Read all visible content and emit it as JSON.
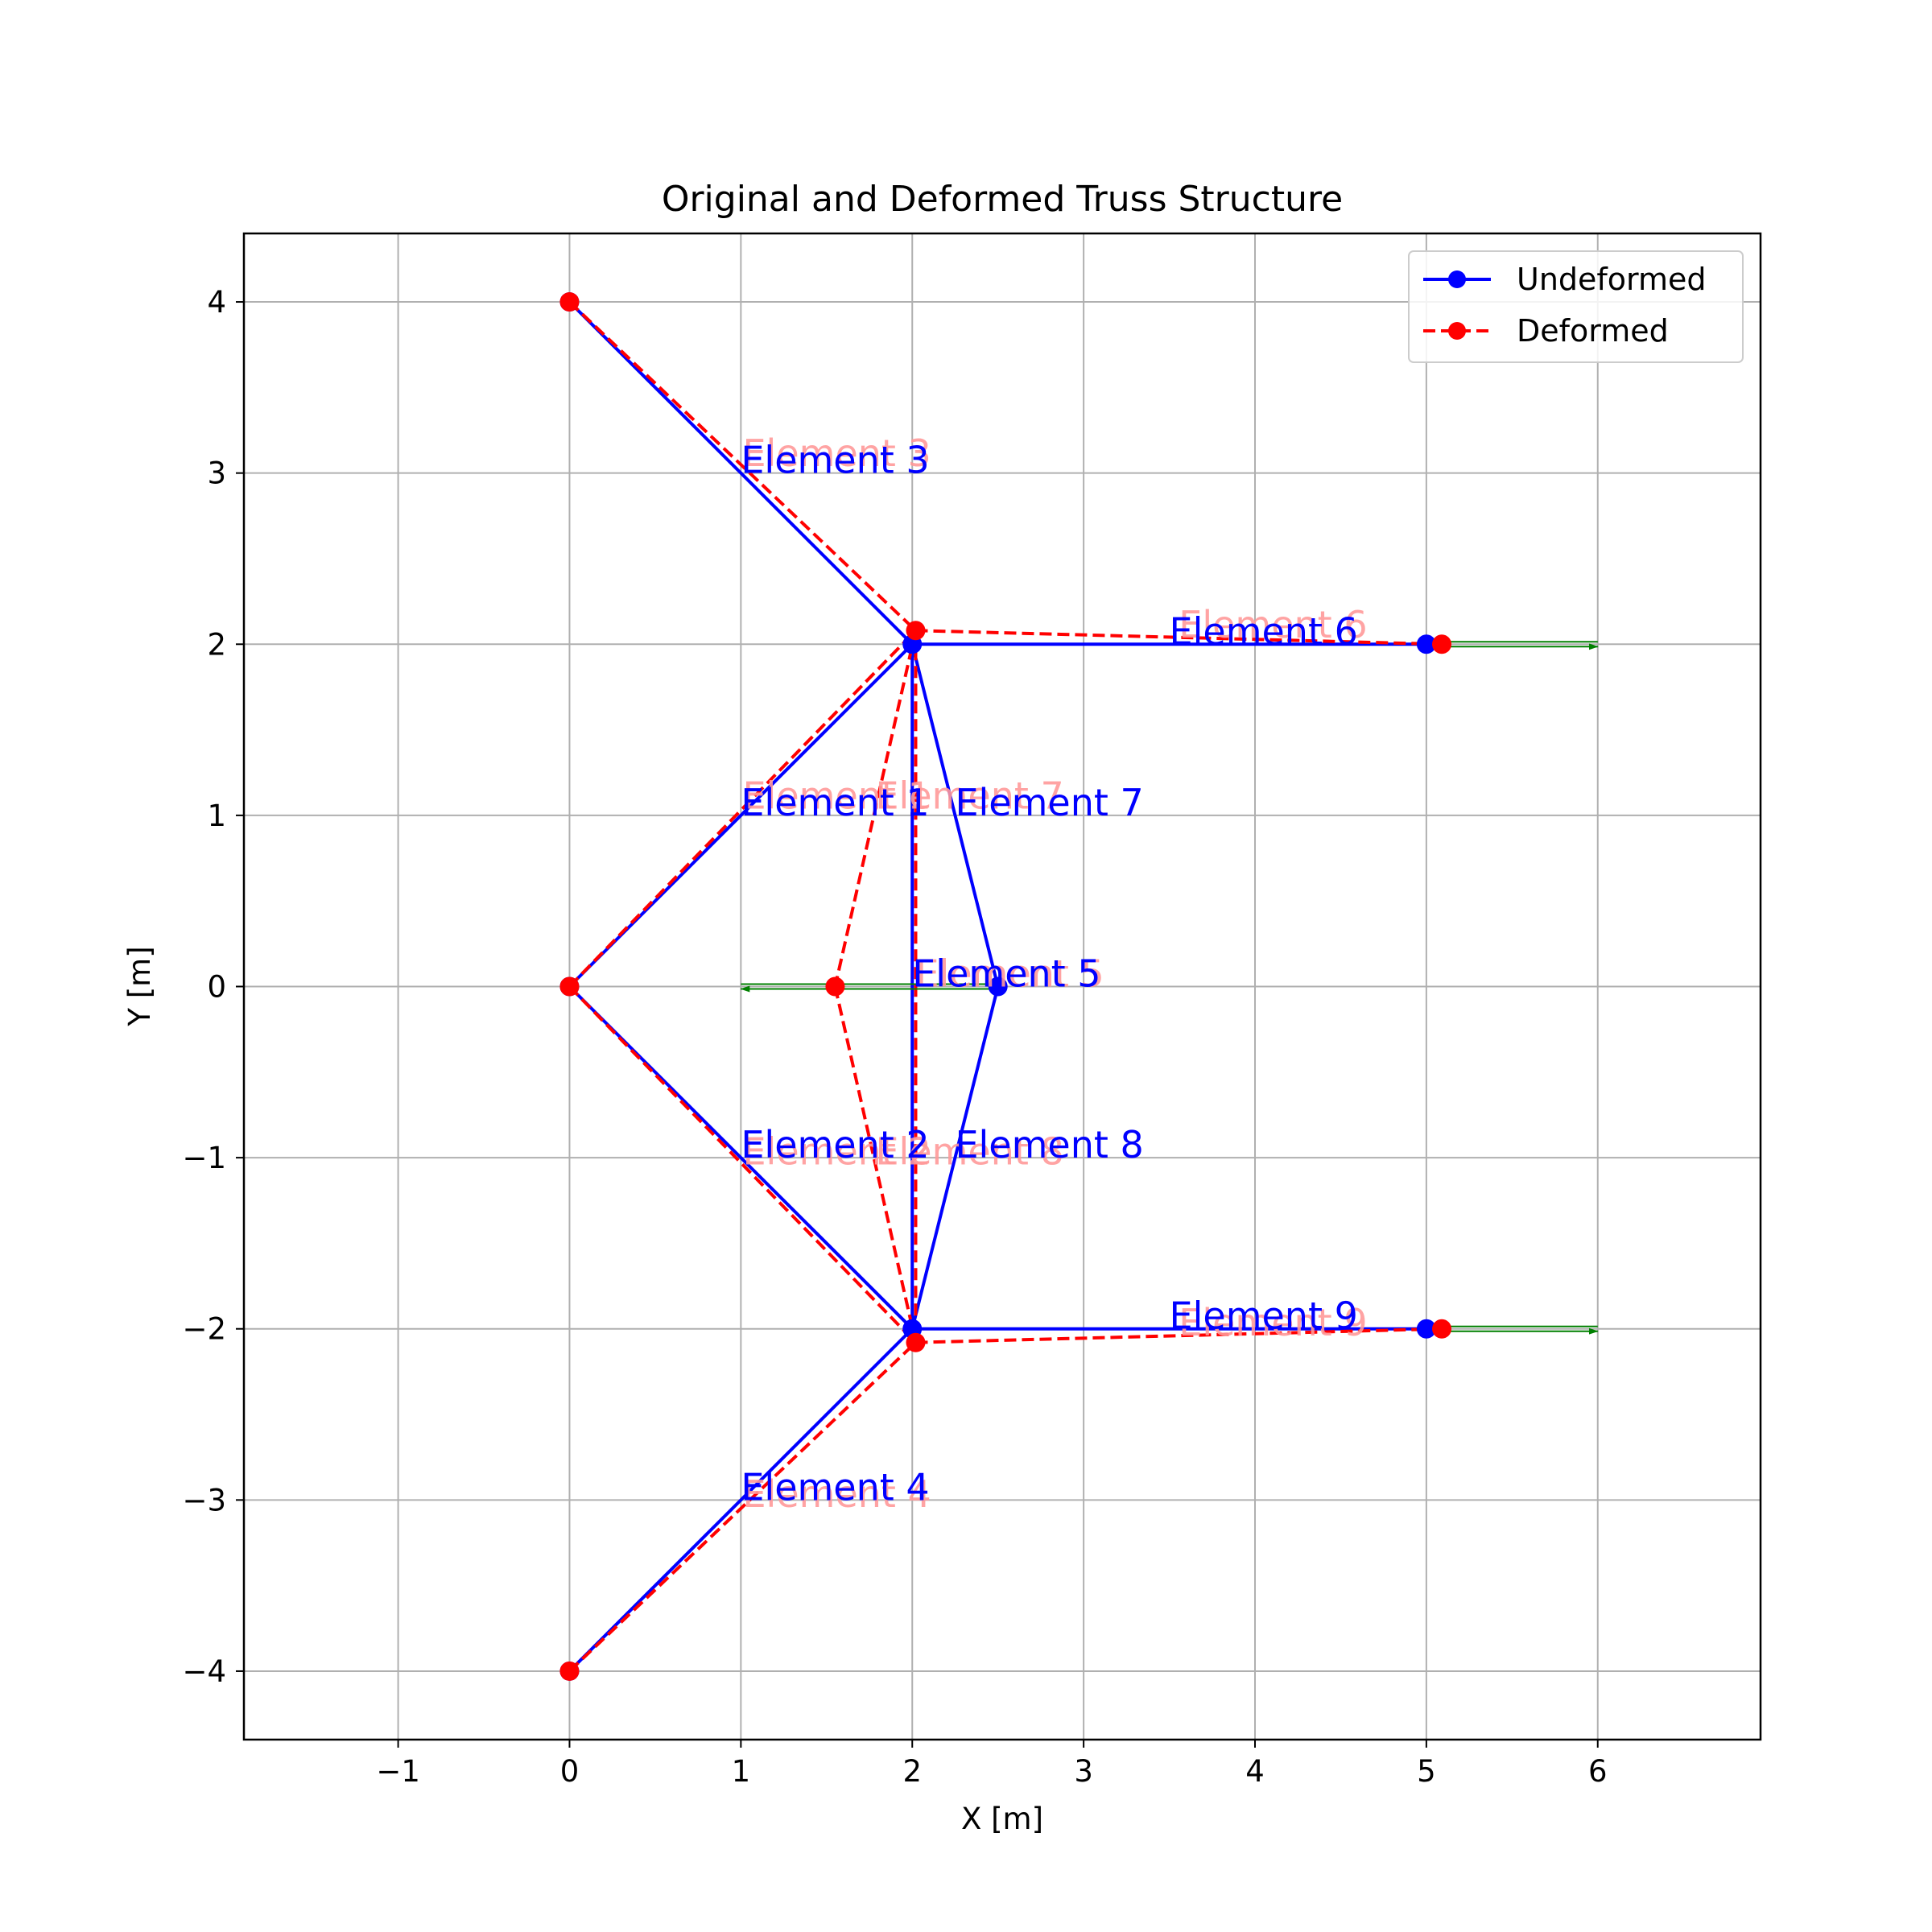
{
  "chart_data": {
    "type": "line",
    "title": "Original and Deformed Truss Structure",
    "xlabel": "X [m]",
    "ylabel": "Y [m]",
    "xlim": [
      -1.9,
      6.95
    ],
    "ylim": [
      -4.4,
      4.4
    ],
    "xticks": [
      -1,
      0,
      1,
      2,
      3,
      4,
      5,
      6
    ],
    "yticks": [
      -4,
      -3,
      -2,
      -1,
      0,
      1,
      2,
      3,
      4
    ],
    "xtick_labels": [
      "−1",
      "0",
      "1",
      "2",
      "3",
      "4",
      "5",
      "6"
    ],
    "ytick_labels": [
      "−4",
      "−3",
      "−2",
      "−1",
      "0",
      "1",
      "2",
      "3",
      "4"
    ],
    "grid": true,
    "legend_position": "top-right",
    "colors": {
      "undeformed": "#0000ff",
      "deformed": "#ff0000",
      "load": "#008000",
      "undeformed_label": "#0000ff",
      "deformed_label": "#ff9999"
    },
    "series": [
      {
        "name": "Undeformed",
        "style": "solid",
        "nodes": [
          [
            0,
            0
          ],
          [
            2,
            2
          ],
          [
            2,
            -2
          ],
          [
            0,
            4
          ],
          [
            0,
            -4
          ],
          [
            2.5,
            0
          ],
          [
            5,
            2
          ],
          [
            5,
            -2
          ]
        ],
        "elements": [
          {
            "label": "Element 1",
            "from": 0,
            "to": 1
          },
          {
            "label": "Element 2",
            "from": 0,
            "to": 2
          },
          {
            "label": "Element 3",
            "from": 3,
            "to": 1
          },
          {
            "label": "Element 4",
            "from": 4,
            "to": 2
          },
          {
            "label": "Element 5",
            "from": 1,
            "to": 2
          },
          {
            "label": "Element 6",
            "from": 1,
            "to": 6
          },
          {
            "label": "Element 7",
            "from": 1,
            "to": 5
          },
          {
            "label": "Element 8",
            "from": 5,
            "to": 2
          },
          {
            "label": "Element 9",
            "from": 2,
            "to": 7
          }
        ]
      },
      {
        "name": "Deformed",
        "style": "dashed",
        "nodes": [
          [
            0,
            0
          ],
          [
            2.02,
            2.08
          ],
          [
            2.02,
            -2.08
          ],
          [
            0,
            4
          ],
          [
            0,
            -4
          ],
          [
            1.55,
            0
          ],
          [
            5.09,
            2
          ],
          [
            5.09,
            -2
          ]
        ],
        "elements": [
          {
            "label": "Element 1",
            "from": 0,
            "to": 1
          },
          {
            "label": "Element 2",
            "from": 0,
            "to": 2
          },
          {
            "label": "Element 3",
            "from": 3,
            "to": 1
          },
          {
            "label": "Element 4",
            "from": 4,
            "to": 2
          },
          {
            "label": "Element 5",
            "from": 1,
            "to": 2
          },
          {
            "label": "Element 6",
            "from": 1,
            "to": 6
          },
          {
            "label": "Element 7",
            "from": 1,
            "to": 5
          },
          {
            "label": "Element 8",
            "from": 5,
            "to": 2
          },
          {
            "label": "Element 9",
            "from": 2,
            "to": 7
          }
        ]
      }
    ],
    "loads": [
      {
        "from": [
          2.5,
          0
        ],
        "to": [
          1,
          0
        ]
      },
      {
        "from": [
          5,
          2
        ],
        "to": [
          6,
          2
        ]
      },
      {
        "from": [
          5,
          -2
        ],
        "to": [
          6,
          -2
        ]
      }
    ]
  }
}
